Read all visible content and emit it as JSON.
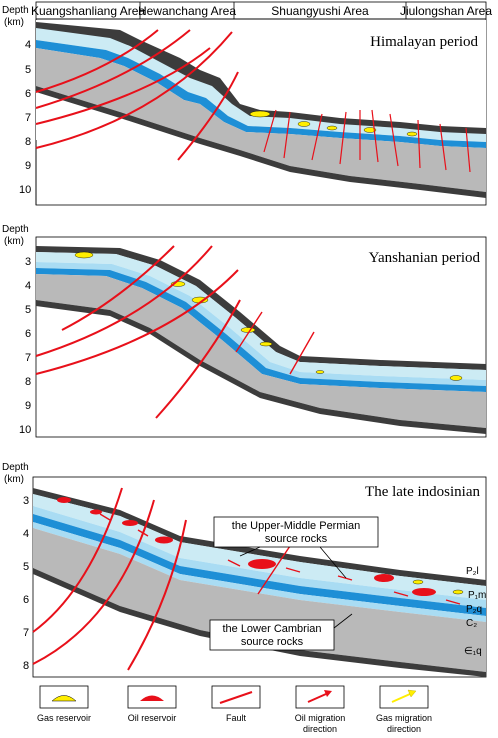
{
  "areas": [
    "Kuangshanliang Area",
    "Hewanchang Area",
    "Shuangyushi Area",
    "Jiulongshan Area"
  ],
  "panels": [
    {
      "title": "Himalayan period",
      "depth_label": [
        "Depth",
        "(km)"
      ],
      "ticks": [
        "4",
        "5",
        "6",
        "7",
        "8",
        "9",
        "10"
      ]
    },
    {
      "title": "Yanshanian period",
      "depth_label": [
        "Depth",
        "(km)"
      ],
      "ticks": [
        "3",
        "4",
        "5",
        "6",
        "7",
        "8",
        "9",
        "10"
      ]
    },
    {
      "title": "The late indosinian",
      "depth_label": [
        "Depth",
        "(km)"
      ],
      "ticks": [
        "3",
        "4",
        "5",
        "6",
        "7",
        "8"
      ],
      "callouts": [
        [
          "the Upper-Middle  Permian",
          "source rocks"
        ],
        [
          "the Lower Cambrian",
          "source rocks"
        ]
      ],
      "strata": [
        "P₂l",
        "P₁m",
        "P₂q",
        "C₂",
        "∈₁q"
      ]
    }
  ],
  "legend": [
    {
      "icon": "gas-reservoir-icon",
      "label": [
        "Gas reservoir"
      ]
    },
    {
      "icon": "oil-reservoir-icon",
      "label": [
        "Oil reservoir"
      ]
    },
    {
      "icon": "fault-icon",
      "label": [
        "Fault"
      ]
    },
    {
      "icon": "oil-migration-arrow-icon",
      "label": [
        "Oil migration",
        "direction"
      ]
    },
    {
      "icon": "gas-migration-arrow-icon",
      "label": [
        "Gas migration",
        "direction"
      ]
    }
  ],
  "colors": {
    "basement": "#b9b9b9",
    "dark_layer": "#3c3c3c",
    "blue_dark": "#1e8fd6",
    "blue_light": "#a9dcf3",
    "cyan_pale": "#ccebf4",
    "gas": "#ffee00",
    "oil": "#e8101a",
    "fault": "#e8101a"
  }
}
